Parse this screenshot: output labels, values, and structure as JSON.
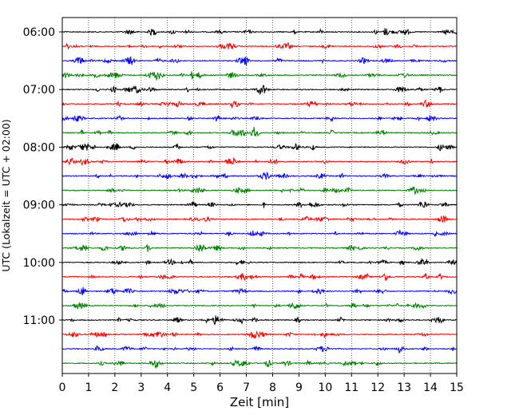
{
  "chart_data": {
    "type": "line",
    "title": "",
    "xlabel": "Zeit  [min]",
    "ylabel": "UTC (Lokalzeit = UTC + 02:00)",
    "xlim": [
      0,
      15
    ],
    "x_ticks": [
      "0",
      "1",
      "2",
      "3",
      "4",
      "5",
      "6",
      "7",
      "8",
      "9",
      "10",
      "11",
      "12",
      "13",
      "14",
      "15"
    ],
    "y_tick_labels": [
      "06:00",
      "07:00",
      "08:00",
      "09:00",
      "10:00",
      "11:00"
    ],
    "grid": "vertical dotted at each minute",
    "trace_interval_minutes": 15,
    "color_cycle": [
      "#000000",
      "#ff0000",
      "#0000ff",
      "#008000"
    ],
    "series": [
      {
        "start": "06:00",
        "color": "#000000"
      },
      {
        "start": "06:15",
        "color": "#ff0000"
      },
      {
        "start": "06:30",
        "color": "#0000ff"
      },
      {
        "start": "06:45",
        "color": "#008000"
      },
      {
        "start": "07:00",
        "color": "#000000"
      },
      {
        "start": "07:15",
        "color": "#ff0000"
      },
      {
        "start": "07:30",
        "color": "#0000ff"
      },
      {
        "start": "07:45",
        "color": "#008000"
      },
      {
        "start": "08:00",
        "color": "#000000"
      },
      {
        "start": "08:15",
        "color": "#ff0000"
      },
      {
        "start": "08:30",
        "color": "#0000ff"
      },
      {
        "start": "08:45",
        "color": "#008000"
      },
      {
        "start": "09:00",
        "color": "#000000"
      },
      {
        "start": "09:15",
        "color": "#ff0000"
      },
      {
        "start": "09:30",
        "color": "#0000ff"
      },
      {
        "start": "09:45",
        "color": "#008000"
      },
      {
        "start": "10:00",
        "color": "#000000"
      },
      {
        "start": "10:15",
        "color": "#ff0000"
      },
      {
        "start": "10:30",
        "color": "#0000ff"
      },
      {
        "start": "10:45",
        "color": "#008000"
      },
      {
        "start": "11:00",
        "color": "#000000"
      },
      {
        "start": "11:15",
        "color": "#ff0000"
      },
      {
        "start": "11:30",
        "color": "#0000ff"
      },
      {
        "start": "11:45",
        "color": "#008000"
      }
    ]
  }
}
